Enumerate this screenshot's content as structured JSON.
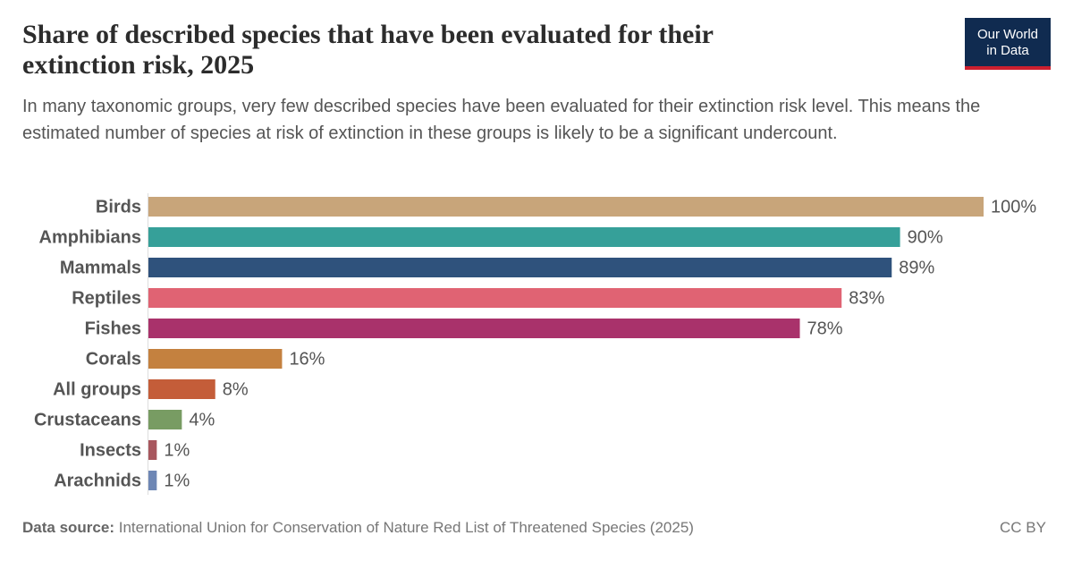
{
  "chart_data": {
    "type": "bar",
    "orientation": "horizontal",
    "title": "Share of described species that have been evaluated for their extinction risk, 2025",
    "subtitle": "In many taxonomic groups, very few described species have been evaluated for their extinction risk level. This means the estimated number of species at risk of extinction in these groups is likely to be a significant undercount.",
    "categories": [
      "Birds",
      "Amphibians",
      "Mammals",
      "Reptiles",
      "Fishes",
      "Corals",
      "All groups",
      "Crustaceans",
      "Insects",
      "Arachnids"
    ],
    "values": [
      100,
      90,
      89,
      83,
      78,
      16,
      8,
      4,
      1,
      1
    ],
    "value_labels": [
      "100%",
      "90%",
      "89%",
      "83%",
      "78%",
      "16%",
      "8%",
      "4%",
      "1%",
      "1%"
    ],
    "colors": [
      "#c8a57a",
      "#36a099",
      "#2f527c",
      "#e06373",
      "#a9326b",
      "#c4813f",
      "#c45d39",
      "#789c63",
      "#a8575e",
      "#6e87b5"
    ],
    "source_label": "Data source:",
    "source": "International Union for Conservation of Nature Red List of Threatened Species (2025)",
    "license": "CC BY",
    "logo": [
      "Our World",
      "in Data"
    ]
  }
}
